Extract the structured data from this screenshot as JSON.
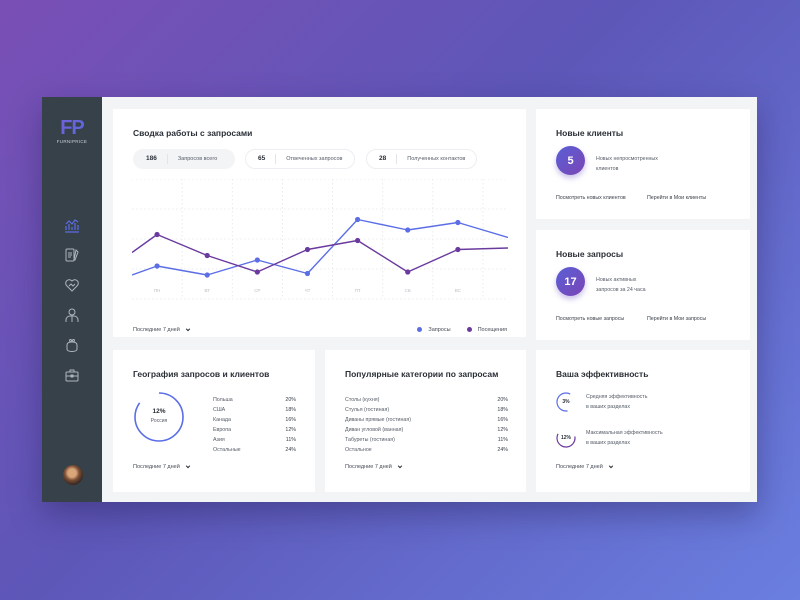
{
  "brand": {
    "logo_mark": "FP",
    "logo_text": "FURNIPRICE"
  },
  "sidebar": {
    "items": [
      {
        "name": "analytics",
        "icon": "chart-icon",
        "active": true
      },
      {
        "name": "documents",
        "icon": "document-icon",
        "active": false
      },
      {
        "name": "deals",
        "icon": "heart-handshake-icon",
        "active": false
      },
      {
        "name": "clients",
        "icon": "user-icon",
        "active": false
      },
      {
        "name": "wallet",
        "icon": "purse-icon",
        "active": false
      },
      {
        "name": "portfolio",
        "icon": "briefcase-icon",
        "active": false
      }
    ],
    "avatar": "user-avatar"
  },
  "summary": {
    "title": "Сводка работы с запросами",
    "pills": [
      {
        "value": "186",
        "label": "Запросов всего"
      },
      {
        "value": "65",
        "label": "Отвеченных запросов"
      },
      {
        "value": "28",
        "label": "Полученных контактов"
      }
    ],
    "period": "Последние 7 дней",
    "legend": [
      {
        "label": "Запросы",
        "color": "#5b6ee6"
      },
      {
        "label": "Посещения",
        "color": "#6a3a9e"
      }
    ]
  },
  "chart_data": {
    "type": "line",
    "title": "Сводка работы с запросами",
    "categories": [
      "ПН",
      "ВТ",
      "СР",
      "ЧТ",
      "ПТ",
      "СБ",
      "ВС"
    ],
    "series": [
      {
        "name": "Запросы",
        "color": "#5b6ee6",
        "values": [
          22,
          16,
          26,
          17,
          53,
          46,
          51
        ]
      },
      {
        "name": "Посещения",
        "color": "#6a3a9e",
        "values": [
          43,
          29,
          18,
          33,
          39,
          18,
          33
        ]
      }
    ],
    "edge_values": {
      "Запросы": {
        "start": 16,
        "end": 41
      },
      "Посещения": {
        "start": 31,
        "end": 34
      }
    },
    "xlabel": "",
    "ylabel": "",
    "ylim": [
      0,
      80
    ],
    "grid": true,
    "legend_position": "bottom-right"
  },
  "new_clients": {
    "title": "Новые клиенты",
    "count": "5",
    "line1": "Новых непросмотренных",
    "line2": "клиентов",
    "link1": "Посмотреть новых клиентов",
    "link2": "Перейти в Мои клиенты"
  },
  "new_requests": {
    "title": "Новые запросы",
    "count": "17",
    "line1": "Новых активных",
    "line2": "запросов за 24 часа",
    "link1": "Посмотреть новые запросы",
    "link2": "Перейти в Мои запросы"
  },
  "geography": {
    "title": "География запросов и клиентов",
    "ring_value": "12%",
    "ring_label": "Россия",
    "rows": [
      {
        "label": "Польша",
        "value": "20%"
      },
      {
        "label": "США",
        "value": "18%"
      },
      {
        "label": "Канада",
        "value": "16%"
      },
      {
        "label": "Европа",
        "value": "12%"
      },
      {
        "label": "Азия",
        "value": "11%"
      },
      {
        "label": "Остальные",
        "value": "24%"
      }
    ],
    "period": "Последние 7 дней"
  },
  "categories": {
    "title": "Популярные категории по запросам",
    "rows": [
      {
        "label": "Столы (кухня)",
        "value": "20%"
      },
      {
        "label": "Стулья (гостиная)",
        "value": "18%"
      },
      {
        "label": "Диваны прямые (гостиная)",
        "value": "16%"
      },
      {
        "label": "Диван угловой (ванная)",
        "value": "12%"
      },
      {
        "label": "Табуреты (гостиная)",
        "value": "11%"
      },
      {
        "label": "Остальное",
        "value": "24%"
      }
    ],
    "period": "Последние 7 дней"
  },
  "efficiency": {
    "title": "Ваша эффективность",
    "items": [
      {
        "value": "3%",
        "line1": "Средняя эффективность",
        "line2": "в ваших разделах",
        "color": "#5b6ee6"
      },
      {
        "value": "12%",
        "line1": "Максимальная эффективность",
        "line2": "в ваших разделах",
        "color": "#6a3a9e"
      }
    ],
    "period": "Последние 7 дней"
  }
}
